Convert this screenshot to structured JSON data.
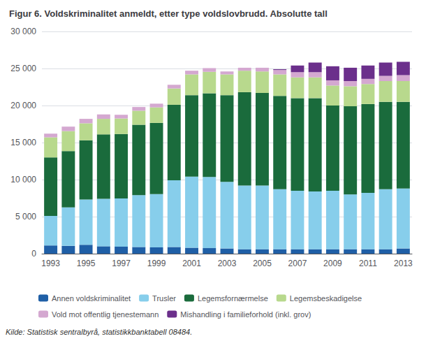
{
  "chart_data": {
    "type": "bar",
    "title": "Figur 6. Voldskriminalitet anmeldt, etter type voldslovbrudd. Absolutte tall",
    "annotations": [
      "Kilde: Statistisk sentralbyrå, statistikkbanktabell 08484."
    ],
    "stacked": true,
    "grid": true,
    "legend": "bottom",
    "categories": [
      "1993",
      null,
      "1995",
      null,
      "1997",
      null,
      "1999",
      null,
      "2001",
      null,
      "2003",
      null,
      "2005",
      null,
      "2007",
      null,
      "2009",
      null,
      "2011",
      null,
      "2013"
    ],
    "series": [
      {
        "name": "Annen voldskriminalitet",
        "color": "#1f5fa6",
        "values": [
          1100,
          1050,
          1200,
          1000,
          950,
          900,
          850,
          900,
          800,
          750,
          700,
          600,
          600,
          600,
          600,
          600,
          600,
          600,
          600,
          600,
          700
        ]
      },
      {
        "name": "Trusler",
        "color": "#87ceeb",
        "values": [
          4000,
          5200,
          6100,
          6400,
          6500,
          7000,
          7200,
          9000,
          9600,
          9600,
          9000,
          8600,
          8600,
          8100,
          7900,
          7800,
          7900,
          7400,
          7600,
          8100,
          8100
        ]
      },
      {
        "name": "Legemsfornærmelse",
        "color": "#1a6b3c",
        "values": [
          7900,
          7600,
          8000,
          8700,
          8700,
          9500,
          9600,
          10200,
          11000,
          11300,
          11700,
          12600,
          12500,
          12600,
          12500,
          12600,
          11500,
          11900,
          12000,
          11800,
          11700
        ]
      },
      {
        "name": "Legemsbeskadigelse",
        "color": "#b8d98d",
        "values": [
          2700,
          2700,
          2300,
          2100,
          2100,
          1900,
          2100,
          2200,
          2800,
          2900,
          2800,
          2900,
          2900,
          2900,
          2800,
          2800,
          2700,
          2700,
          2700,
          2800,
          2800
        ]
      },
      {
        "name": "Vold mot offentlig tjenestemann",
        "color": "#d4a8d0",
        "values": [
          500,
          600,
          600,
          600,
          500,
          500,
          500,
          500,
          500,
          500,
          400,
          400,
          500,
          600,
          700,
          700,
          700,
          700,
          700,
          700,
          800
        ]
      },
      {
        "name": "Mishandling i familieforhold (inkl. grov)",
        "color": "#6b2f8b",
        "values": [
          0,
          0,
          0,
          0,
          0,
          0,
          0,
          0,
          0,
          0,
          0,
          0,
          0,
          100,
          900,
          1300,
          1900,
          1800,
          1800,
          1800,
          1800
        ]
      }
    ],
    "ylim": [
      0,
      30000
    ],
    "yticks": [
      0,
      {
        "value": 5000,
        "label": "5 000"
      },
      {
        "value": 10000,
        "label": "10 000"
      },
      {
        "value": 15000,
        "label": "15 000"
      },
      {
        "value": 20000,
        "label": "20 000"
      },
      {
        "value": 25000,
        "label": "25 000"
      },
      {
        "value": 30000,
        "label": "30 000"
      }
    ]
  }
}
